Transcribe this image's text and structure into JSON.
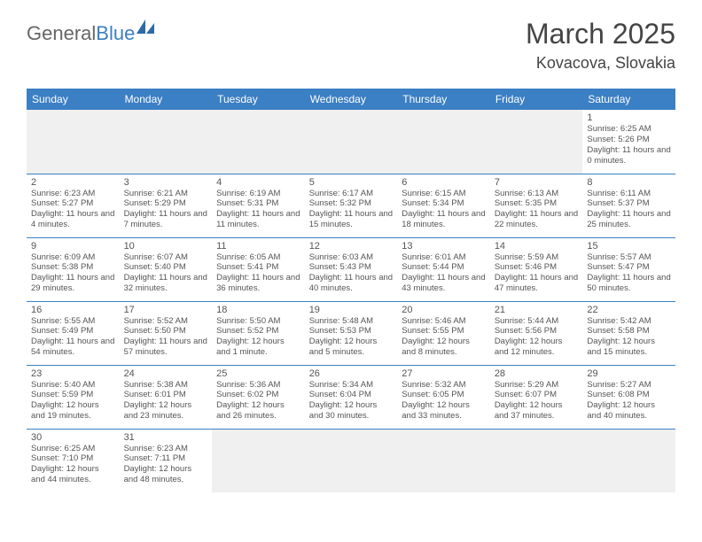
{
  "logo": {
    "general": "General",
    "blue": "Blue"
  },
  "title": "March 2025",
  "location": "Kovacova, Slovakia",
  "dayHeaders": [
    "Sunday",
    "Monday",
    "Tuesday",
    "Wednesday",
    "Thursday",
    "Friday",
    "Saturday"
  ],
  "colors": {
    "headerBg": "#3b7fc4",
    "headerText": "#ffffff",
    "emptyBg": "#f0f0f0",
    "rowBorder": "#3b7fc4",
    "textColor": "#555555",
    "titleColor": "#444444",
    "logoGray": "#666666",
    "logoBlue": "#3b7fc4"
  },
  "weeks": [
    [
      null,
      null,
      null,
      null,
      null,
      null,
      {
        "n": "1",
        "sr": "Sunrise: 6:25 AM",
        "ss": "Sunset: 5:26 PM",
        "dl": "Daylight: 11 hours and 0 minutes."
      }
    ],
    [
      {
        "n": "2",
        "sr": "Sunrise: 6:23 AM",
        "ss": "Sunset: 5:27 PM",
        "dl": "Daylight: 11 hours and 4 minutes."
      },
      {
        "n": "3",
        "sr": "Sunrise: 6:21 AM",
        "ss": "Sunset: 5:29 PM",
        "dl": "Daylight: 11 hours and 7 minutes."
      },
      {
        "n": "4",
        "sr": "Sunrise: 6:19 AM",
        "ss": "Sunset: 5:31 PM",
        "dl": "Daylight: 11 hours and 11 minutes."
      },
      {
        "n": "5",
        "sr": "Sunrise: 6:17 AM",
        "ss": "Sunset: 5:32 PM",
        "dl": "Daylight: 11 hours and 15 minutes."
      },
      {
        "n": "6",
        "sr": "Sunrise: 6:15 AM",
        "ss": "Sunset: 5:34 PM",
        "dl": "Daylight: 11 hours and 18 minutes."
      },
      {
        "n": "7",
        "sr": "Sunrise: 6:13 AM",
        "ss": "Sunset: 5:35 PM",
        "dl": "Daylight: 11 hours and 22 minutes."
      },
      {
        "n": "8",
        "sr": "Sunrise: 6:11 AM",
        "ss": "Sunset: 5:37 PM",
        "dl": "Daylight: 11 hours and 25 minutes."
      }
    ],
    [
      {
        "n": "9",
        "sr": "Sunrise: 6:09 AM",
        "ss": "Sunset: 5:38 PM",
        "dl": "Daylight: 11 hours and 29 minutes."
      },
      {
        "n": "10",
        "sr": "Sunrise: 6:07 AM",
        "ss": "Sunset: 5:40 PM",
        "dl": "Daylight: 11 hours and 32 minutes."
      },
      {
        "n": "11",
        "sr": "Sunrise: 6:05 AM",
        "ss": "Sunset: 5:41 PM",
        "dl": "Daylight: 11 hours and 36 minutes."
      },
      {
        "n": "12",
        "sr": "Sunrise: 6:03 AM",
        "ss": "Sunset: 5:43 PM",
        "dl": "Daylight: 11 hours and 40 minutes."
      },
      {
        "n": "13",
        "sr": "Sunrise: 6:01 AM",
        "ss": "Sunset: 5:44 PM",
        "dl": "Daylight: 11 hours and 43 minutes."
      },
      {
        "n": "14",
        "sr": "Sunrise: 5:59 AM",
        "ss": "Sunset: 5:46 PM",
        "dl": "Daylight: 11 hours and 47 minutes."
      },
      {
        "n": "15",
        "sr": "Sunrise: 5:57 AM",
        "ss": "Sunset: 5:47 PM",
        "dl": "Daylight: 11 hours and 50 minutes."
      }
    ],
    [
      {
        "n": "16",
        "sr": "Sunrise: 5:55 AM",
        "ss": "Sunset: 5:49 PM",
        "dl": "Daylight: 11 hours and 54 minutes."
      },
      {
        "n": "17",
        "sr": "Sunrise: 5:52 AM",
        "ss": "Sunset: 5:50 PM",
        "dl": "Daylight: 11 hours and 57 minutes."
      },
      {
        "n": "18",
        "sr": "Sunrise: 5:50 AM",
        "ss": "Sunset: 5:52 PM",
        "dl": "Daylight: 12 hours and 1 minute."
      },
      {
        "n": "19",
        "sr": "Sunrise: 5:48 AM",
        "ss": "Sunset: 5:53 PM",
        "dl": "Daylight: 12 hours and 5 minutes."
      },
      {
        "n": "20",
        "sr": "Sunrise: 5:46 AM",
        "ss": "Sunset: 5:55 PM",
        "dl": "Daylight: 12 hours and 8 minutes."
      },
      {
        "n": "21",
        "sr": "Sunrise: 5:44 AM",
        "ss": "Sunset: 5:56 PM",
        "dl": "Daylight: 12 hours and 12 minutes."
      },
      {
        "n": "22",
        "sr": "Sunrise: 5:42 AM",
        "ss": "Sunset: 5:58 PM",
        "dl": "Daylight: 12 hours and 15 minutes."
      }
    ],
    [
      {
        "n": "23",
        "sr": "Sunrise: 5:40 AM",
        "ss": "Sunset: 5:59 PM",
        "dl": "Daylight: 12 hours and 19 minutes."
      },
      {
        "n": "24",
        "sr": "Sunrise: 5:38 AM",
        "ss": "Sunset: 6:01 PM",
        "dl": "Daylight: 12 hours and 23 minutes."
      },
      {
        "n": "25",
        "sr": "Sunrise: 5:36 AM",
        "ss": "Sunset: 6:02 PM",
        "dl": "Daylight: 12 hours and 26 minutes."
      },
      {
        "n": "26",
        "sr": "Sunrise: 5:34 AM",
        "ss": "Sunset: 6:04 PM",
        "dl": "Daylight: 12 hours and 30 minutes."
      },
      {
        "n": "27",
        "sr": "Sunrise: 5:32 AM",
        "ss": "Sunset: 6:05 PM",
        "dl": "Daylight: 12 hours and 33 minutes."
      },
      {
        "n": "28",
        "sr": "Sunrise: 5:29 AM",
        "ss": "Sunset: 6:07 PM",
        "dl": "Daylight: 12 hours and 37 minutes."
      },
      {
        "n": "29",
        "sr": "Sunrise: 5:27 AM",
        "ss": "Sunset: 6:08 PM",
        "dl": "Daylight: 12 hours and 40 minutes."
      }
    ],
    [
      {
        "n": "30",
        "sr": "Sunrise: 6:25 AM",
        "ss": "Sunset: 7:10 PM",
        "dl": "Daylight: 12 hours and 44 minutes."
      },
      {
        "n": "31",
        "sr": "Sunrise: 6:23 AM",
        "ss": "Sunset: 7:11 PM",
        "dl": "Daylight: 12 hours and 48 minutes."
      },
      null,
      null,
      null,
      null,
      null
    ]
  ]
}
